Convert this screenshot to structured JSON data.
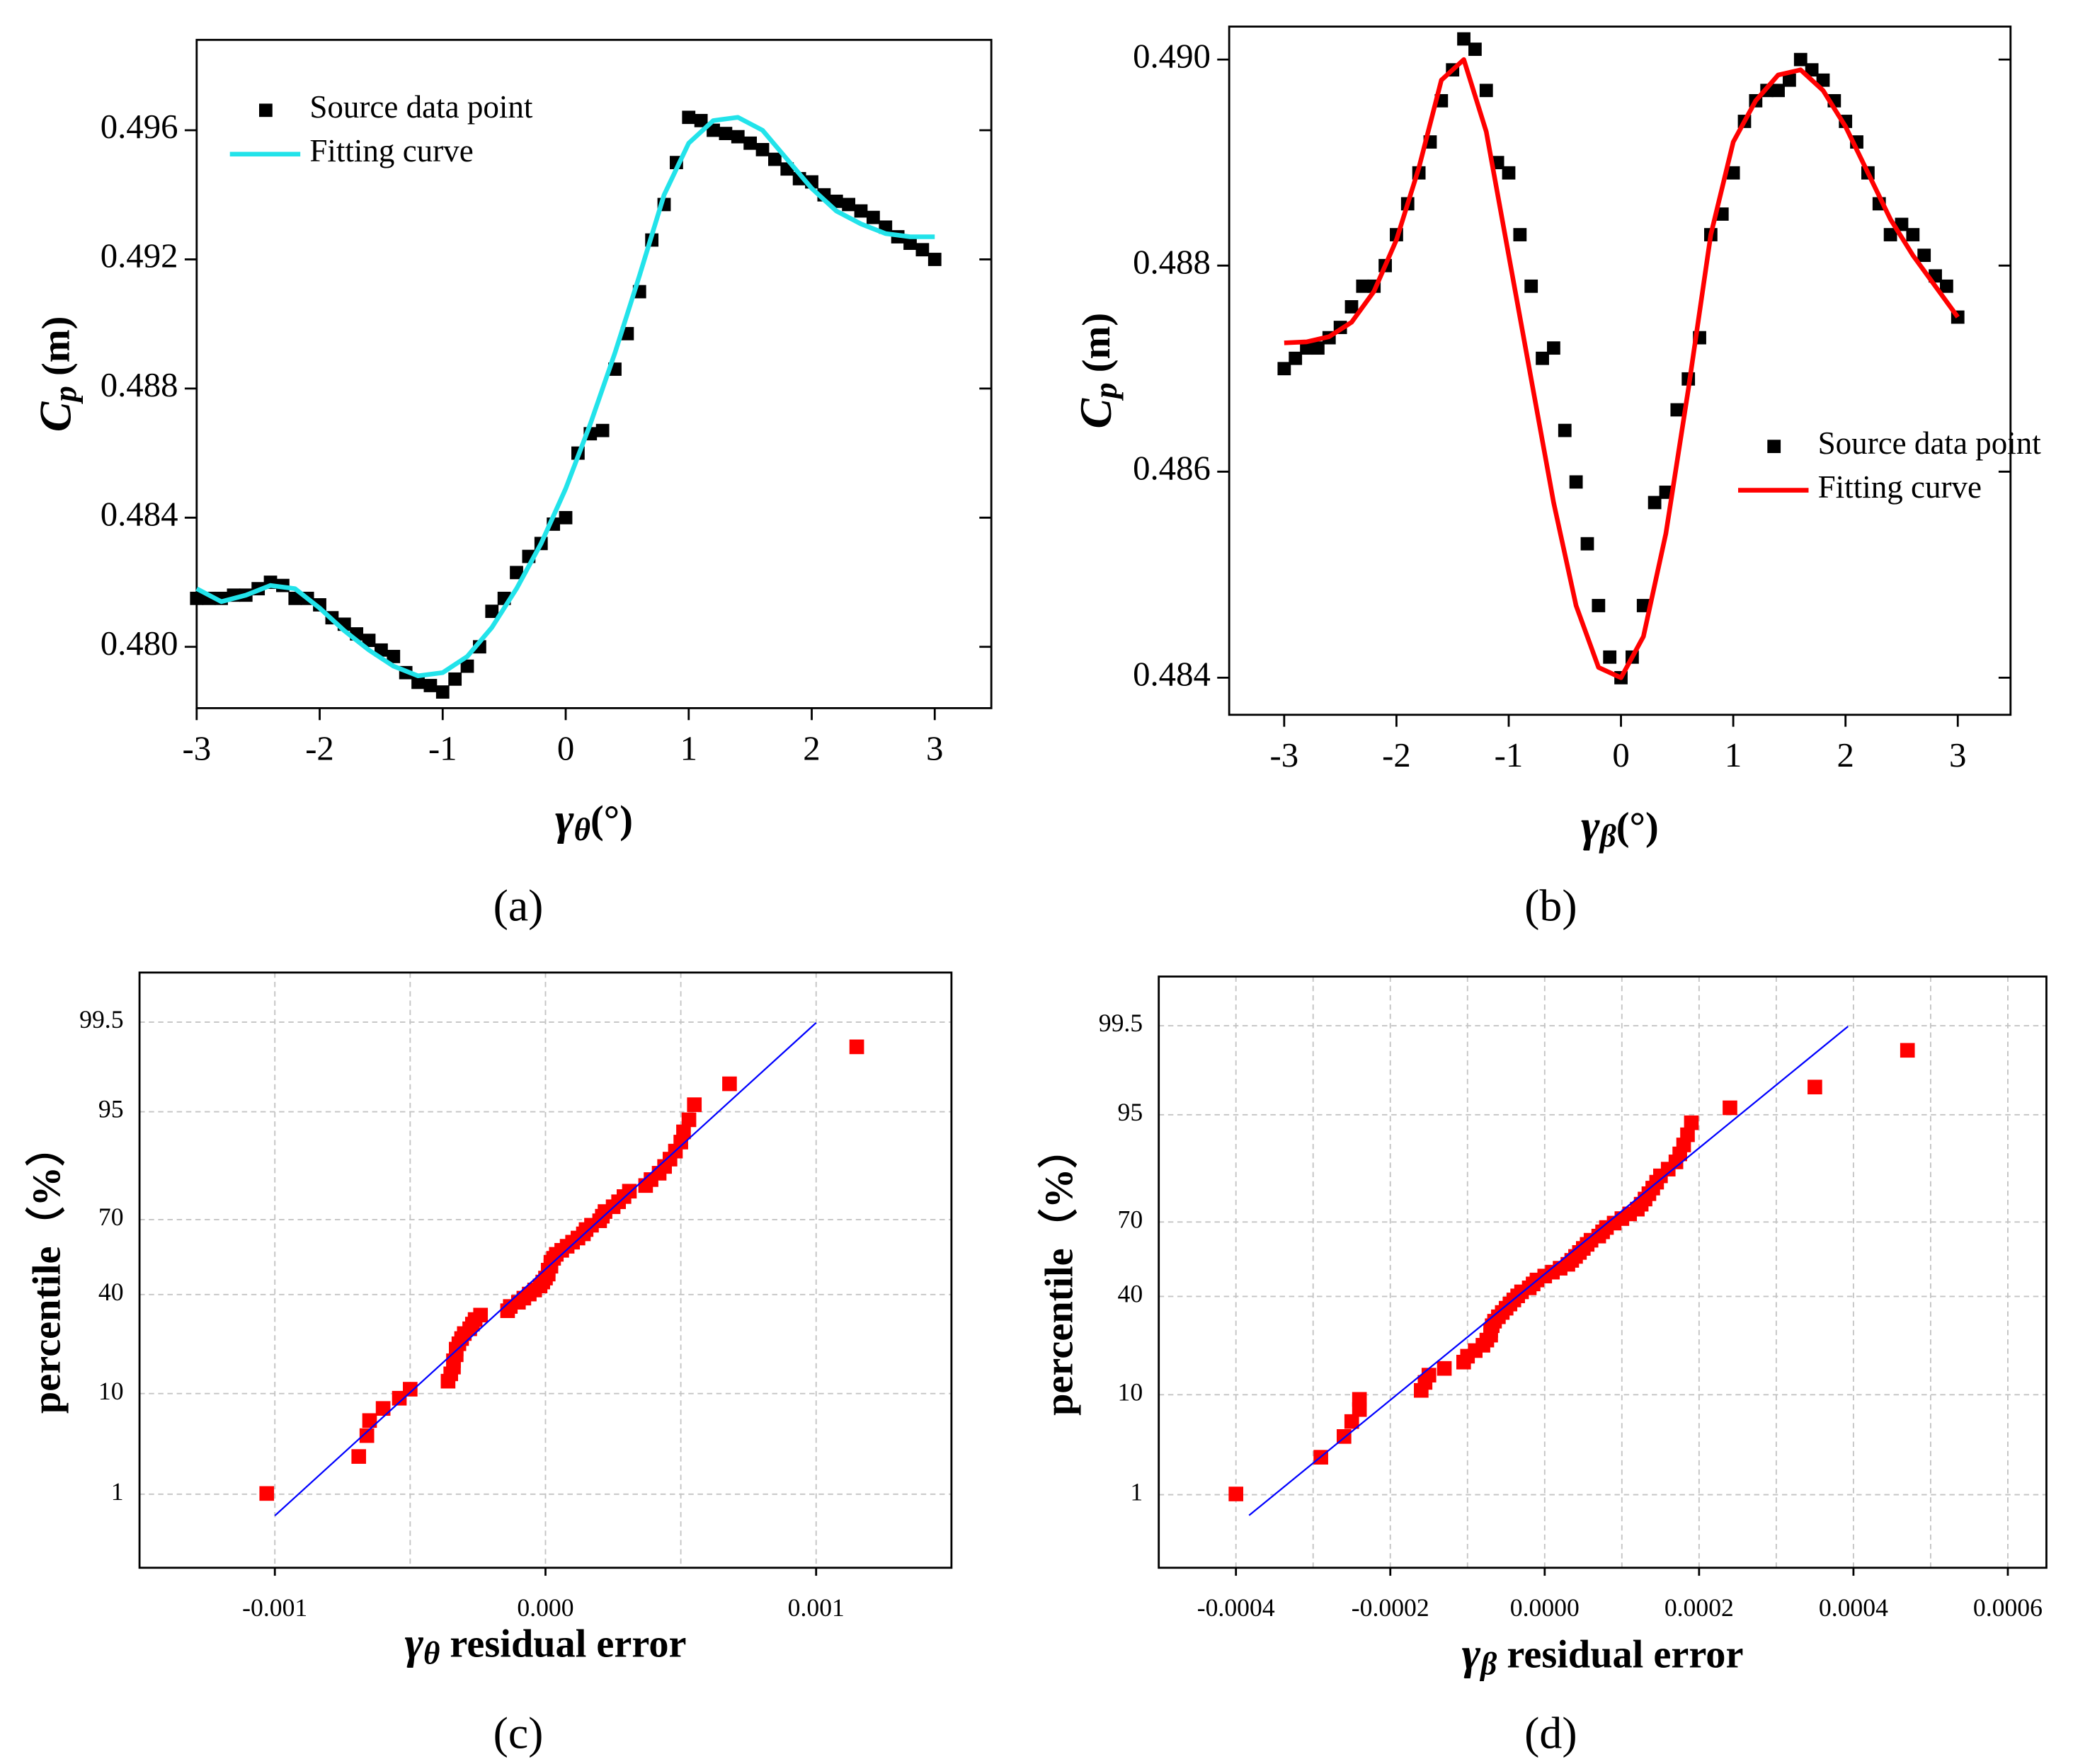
{
  "chart_data": [
    {
      "type": "scatter",
      "caption": "(a)",
      "xlabel": {
        "symbol": "γ",
        "subscript": "θ",
        "text": "(°)"
      },
      "ylabel": {
        "symbol": "C",
        "subscript": "p",
        "text": " (m)"
      },
      "xlim": [
        -3,
        3.46
      ],
      "xticks": [
        -3,
        -2,
        -1,
        0,
        1,
        2,
        3
      ],
      "ylim": [
        0.4781,
        0.4988
      ],
      "yticks": [
        {
          "value": 0.48,
          "label": "0.480"
        },
        0.484,
        0.488,
        0.492,
        0.496
      ],
      "legend_loc": "upper left",
      "series": [
        {
          "name": "Source data point",
          "type": "scatter",
          "color": "#000000",
          "x": [
            -3.0,
            -2.9,
            -2.8,
            -2.7,
            -2.6,
            -2.5,
            -2.4,
            -2.3,
            -2.2,
            -2.1,
            -2.0,
            -1.9,
            -1.8,
            -1.7,
            -1.6,
            -1.5,
            -1.4,
            -1.3,
            -1.2,
            -1.1,
            -1.0,
            -0.9,
            -0.8,
            -0.7,
            -0.6,
            -0.5,
            -0.4,
            -0.3,
            -0.2,
            -0.1,
            0.0,
            0.1,
            0.2,
            0.3,
            0.4,
            0.5,
            0.6,
            0.7,
            0.8,
            0.9,
            1.0,
            1.1,
            1.2,
            1.3,
            1.4,
            1.5,
            1.6,
            1.7,
            1.8,
            1.9,
            2.0,
            2.1,
            2.2,
            2.3,
            2.4,
            2.5,
            2.6,
            2.7,
            2.8,
            2.9,
            3.0
          ],
          "values": [
            0.4815,
            0.4815,
            0.4815,
            0.4816,
            0.4816,
            0.4818,
            0.482,
            0.4819,
            0.4815,
            0.4815,
            0.4813,
            0.4809,
            0.4807,
            0.4804,
            0.4802,
            0.4799,
            0.4797,
            0.4792,
            0.4789,
            0.4788,
            0.4786,
            0.479,
            0.4794,
            0.48,
            0.4811,
            0.4815,
            0.4823,
            0.4828,
            0.4832,
            0.4838,
            0.484,
            0.486,
            0.4866,
            0.4867,
            0.4886,
            0.4897,
            0.491,
            0.4926,
            0.4937,
            0.495,
            0.4964,
            0.4963,
            0.496,
            0.4959,
            0.4958,
            0.4956,
            0.4954,
            0.4951,
            0.4948,
            0.4945,
            0.4944,
            0.494,
            0.4938,
            0.4937,
            0.4935,
            0.4933,
            0.493,
            0.4927,
            0.4925,
            0.4923,
            0.492
          ]
        },
        {
          "name": "Fitting curve",
          "type": "line",
          "color": "#22e3ea",
          "x": [
            -3.0,
            -2.8,
            -2.6,
            -2.4,
            -2.2,
            -2.0,
            -1.8,
            -1.6,
            -1.4,
            -1.2,
            -1.0,
            -0.8,
            -0.6,
            -0.4,
            -0.2,
            0.0,
            0.2,
            0.4,
            0.6,
            0.8,
            1.0,
            1.2,
            1.4,
            1.6,
            1.8,
            2.0,
            2.2,
            2.4,
            2.6,
            2.8,
            3.0
          ],
          "values": [
            0.4818,
            0.4814,
            0.4816,
            0.4819,
            0.4818,
            0.4812,
            0.4805,
            0.4799,
            0.4794,
            0.4791,
            0.4792,
            0.4797,
            0.4806,
            0.4818,
            0.4832,
            0.4849,
            0.4869,
            0.4891,
            0.4915,
            0.494,
            0.4956,
            0.4963,
            0.4964,
            0.496,
            0.4951,
            0.4942,
            0.4935,
            0.4931,
            0.4928,
            0.4927,
            0.4927
          ]
        }
      ]
    },
    {
      "type": "scatter",
      "caption": "(b)",
      "xlabel": {
        "symbol": "γ",
        "subscript": "β",
        "text": "(°)"
      },
      "ylabel": {
        "symbol": "C",
        "subscript": "p",
        "text": " (m)"
      },
      "xlim": [
        -3.49,
        3.47
      ],
      "xticks": [
        -3,
        -2,
        -1,
        0,
        1,
        2,
        3
      ],
      "ylim": [
        0.48364,
        0.49032
      ],
      "yticks": [
        0.484,
        0.486,
        0.488,
        {
          "value": 0.49,
          "label": "0.490"
        }
      ],
      "legend_loc": "center right",
      "series": [
        {
          "name": "Source data point",
          "type": "scatter",
          "color": "#000000",
          "x": [
            -3.0,
            -2.9,
            -2.8,
            -2.7,
            -2.6,
            -2.5,
            -2.4,
            -2.3,
            -2.2,
            -2.1,
            -2.0,
            -1.9,
            -1.8,
            -1.7,
            -1.6,
            -1.5,
            -1.4,
            -1.3,
            -1.2,
            -1.1,
            -1.0,
            -0.9,
            -0.8,
            -0.7,
            -0.6,
            -0.5,
            -0.4,
            -0.3,
            -0.2,
            -0.1,
            0.0,
            0.1,
            0.2,
            0.3,
            0.4,
            0.5,
            0.6,
            0.7,
            0.8,
            0.9,
            1.0,
            1.1,
            1.2,
            1.3,
            1.4,
            1.5,
            1.6,
            1.7,
            1.8,
            1.9,
            2.0,
            2.1,
            2.2,
            2.3,
            2.4,
            2.5,
            2.6,
            2.7,
            2.8,
            2.9,
            3.0
          ],
          "values": [
            0.487,
            0.4871,
            0.4872,
            0.4872,
            0.4873,
            0.4874,
            0.4876,
            0.4878,
            0.4878,
            0.488,
            0.4883,
            0.4886,
            0.4889,
            0.4892,
            0.4896,
            0.4899,
            0.4902,
            0.4901,
            0.4897,
            0.489,
            0.4889,
            0.4883,
            0.4878,
            0.4871,
            0.4872,
            0.4864,
            0.4859,
            0.4853,
            0.4847,
            0.4842,
            0.484,
            0.4842,
            0.4847,
            0.4857,
            0.4858,
            0.4866,
            0.4869,
            0.4873,
            0.4883,
            0.4885,
            0.4889,
            0.4894,
            0.4896,
            0.4897,
            0.4897,
            0.4898,
            0.49,
            0.4899,
            0.4898,
            0.4896,
            0.4894,
            0.4892,
            0.4889,
            0.4886,
            0.4883,
            0.4884,
            0.4883,
            0.4881,
            0.4879,
            0.4878,
            0.4875
          ]
        },
        {
          "name": "Fitting curve",
          "type": "line",
          "color": "#ff0000",
          "x": [
            -3.0,
            -2.8,
            -2.6,
            -2.4,
            -2.2,
            -2.0,
            -1.8,
            -1.6,
            -1.4,
            -1.2,
            -1.0,
            -0.8,
            -0.6,
            -0.4,
            -0.2,
            0.0,
            0.2,
            0.4,
            0.6,
            0.8,
            1.0,
            1.2,
            1.4,
            1.6,
            1.8,
            2.0,
            2.2,
            2.4,
            2.6,
            2.8,
            3.0
          ],
          "values": [
            0.48725,
            0.48726,
            0.48731,
            0.48745,
            0.48775,
            0.48825,
            0.48895,
            0.4898,
            0.49,
            0.4893,
            0.4881,
            0.4869,
            0.4857,
            0.4847,
            0.4841,
            0.484,
            0.4844,
            0.4854,
            0.4868,
            0.4883,
            0.4892,
            0.4896,
            0.48985,
            0.4899,
            0.4897,
            0.48935,
            0.4889,
            0.48845,
            0.4881,
            0.4878,
            0.4875
          ]
        }
      ]
    },
    {
      "type": "scatter",
      "caption": "(c)",
      "yscale": "probability",
      "grid": true,
      "xlabel": {
        "symbol": "γ",
        "subscript": "θ",
        "text": " residual error"
      },
      "ylabel": {
        "text": "percentile（%）"
      },
      "xlim": [
        -0.0015,
        0.0015
      ],
      "xticks": [
        -0.001,
        {
          "value": 0,
          "label": "0.000"
        },
        0.001
      ],
      "xminorticks": [
        -0.0005,
        0.0005
      ],
      "ylim": [
        0.1,
        99.9
      ],
      "yticks": [
        1,
        10,
        40,
        70,
        95,
        99.5
      ],
      "series": [
        {
          "type": "scatter",
          "color": "#ff0000",
          "x": [
            -0.00103,
            -0.00069,
            -0.00066,
            -0.00065,
            -0.0006,
            -0.00054,
            -0.0005,
            -0.00036,
            -0.00035,
            -0.00034,
            -0.00034,
            -0.00033,
            -0.00033,
            -0.00032,
            -0.00031,
            -0.0003,
            -0.00028,
            -0.00027,
            -0.00026,
            -0.00024,
            -0.00014,
            -0.00013,
            -0.0001,
            -8e-05,
            -6e-05,
            -4e-05,
            -2e-05,
            -1e-05,
            0.0,
            1e-05,
            1e-05,
            2e-05,
            2e-05,
            3e-05,
            4e-05,
            6e-05,
            8e-05,
            0.0001,
            0.00012,
            0.00014,
            0.00015,
            0.00017,
            0.0002,
            0.00021,
            0.00022,
            0.00025,
            0.00027,
            0.00029,
            0.00031,
            0.00037,
            0.00039,
            0.00042,
            0.00044,
            0.00046,
            0.00048,
            0.0005,
            0.00051,
            0.00053,
            0.00055,
            0.00068,
            0.00115
          ],
          "values": [
            1.02,
            2.65,
            4.29,
            5.92,
            7.55,
            9.18,
            10.82,
            12.45,
            14.08,
            15.71,
            17.35,
            18.98,
            20.61,
            22.24,
            23.88,
            25.51,
            27.14,
            28.78,
            30.41,
            32.04,
            33.67,
            35.31,
            36.94,
            38.57,
            40.2,
            41.84,
            43.47,
            45.1,
            46.73,
            48.37,
            50,
            51.63,
            53.27,
            54.9,
            56.53,
            58.16,
            59.8,
            61.43,
            63.06,
            64.69,
            66.33,
            67.96,
            69.59,
            71.22,
            72.86,
            74.49,
            76.12,
            77.76,
            79.39,
            81.02,
            82.65,
            84.29,
            85.92,
            87.55,
            89.18,
            90.82,
            92.45,
            94.08,
            95.71,
            97.35,
            98.98
          ]
        },
        {
          "type": "line",
          "color": "#0000ff",
          "x": [
            -0.001,
            0.001
          ],
          "values": [
            0.54,
            99.49
          ]
        }
      ]
    },
    {
      "type": "scatter",
      "caption": "(d)",
      "yscale": "probability",
      "grid": true,
      "xlabel": {
        "symbol": "γ",
        "subscript": "β",
        "text": " residual error"
      },
      "ylabel": {
        "text": "percentile（%）"
      },
      "xlim": [
        -0.0005,
        0.00065
      ],
      "xticks": [
        -0.0004,
        -0.0002,
        {
          "value": 0,
          "label": "0.0000"
        },
        0.0002,
        0.0004,
        0.0006
      ],
      "xminorticks": [
        -0.0003,
        -0.0001,
        0.0001,
        0.0003,
        0.0005
      ],
      "ylim": [
        0.1,
        99.9
      ],
      "yticks": [
        1,
        10,
        40,
        70,
        95,
        99.5
      ],
      "series": [
        {
          "type": "scatter",
          "color": "#ff0000",
          "x": [
            -0.0004,
            -0.00029,
            -0.00026,
            -0.00025,
            -0.00024,
            -0.00024,
            -0.00016,
            -0.000155,
            -0.00015,
            -0.00013,
            -0.000105,
            -0.0001,
            -9e-05,
            -8e-05,
            -7.5e-05,
            -7e-05,
            -7e-05,
            -6.8e-05,
            -6.5e-05,
            -6e-05,
            -5.5e-05,
            -5e-05,
            -4.5e-05,
            -4e-05,
            -3.5e-05,
            -3e-05,
            -2e-05,
            -1.5e-05,
            -1e-05,
            0.0,
            1e-05,
            2e-05,
            3e-05,
            3.5e-05,
            4e-05,
            4.5e-05,
            5e-05,
            5.5e-05,
            6e-05,
            7e-05,
            7.5e-05,
            8e-05,
            9e-05,
            0.0001,
            0.00011,
            0.00012,
            0.000125,
            0.00013,
            0.000135,
            0.00014,
            0.000145,
            0.00015,
            0.00016,
            0.00017,
            0.000175,
            0.00018,
            0.000185,
            0.00019,
            0.00024,
            0.00035,
            0.00047
          ],
          "values": [
            1.02,
            2.65,
            4.29,
            5.92,
            7.55,
            9.18,
            10.82,
            12.45,
            14.08,
            15.71,
            17.35,
            18.98,
            20.61,
            22.24,
            23.88,
            25.51,
            27.14,
            28.78,
            30.41,
            32.04,
            33.67,
            35.31,
            36.94,
            38.57,
            40.2,
            41.84,
            43.47,
            45.1,
            46.73,
            48.37,
            50,
            51.63,
            53.27,
            54.9,
            56.53,
            58.16,
            59.8,
            61.43,
            63.06,
            64.69,
            66.33,
            67.96,
            69.59,
            71.22,
            72.86,
            74.49,
            76.12,
            77.76,
            79.39,
            81.02,
            82.65,
            84.29,
            85.92,
            87.55,
            89.18,
            90.82,
            92.45,
            94.08,
            95.71,
            97.35,
            98.98
          ]
        },
        {
          "type": "line",
          "color": "#0000ff",
          "x": [
            -0.000383,
            0.000393
          ],
          "values": [
            0.55,
            99.49
          ]
        }
      ]
    }
  ]
}
